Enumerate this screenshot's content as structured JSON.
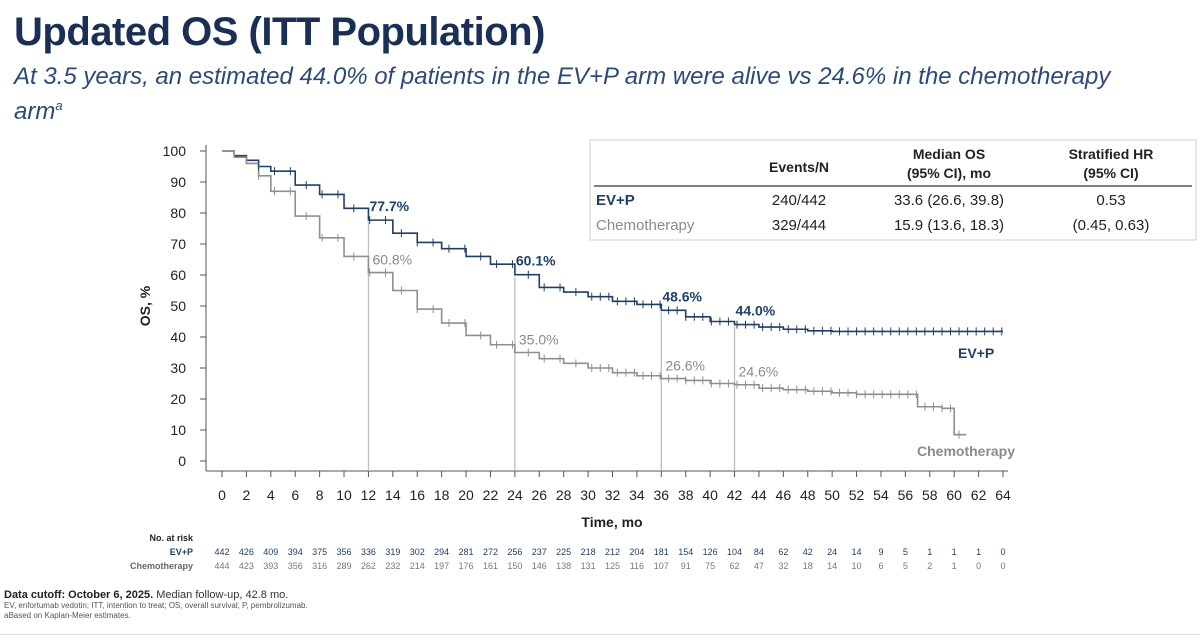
{
  "header": {
    "title": "Updated OS (ITT Population)",
    "subtitle": "At 3.5 years, an estimated 44.0% of patients in the EV+P arm were alive vs 24.6% in the chemotherapy arm",
    "subtitle_sup": "a"
  },
  "table": {
    "headers": [
      "",
      "Events/N",
      "Median OS\n(95% CI), mo",
      "Stratified HR\n(95% CI)"
    ],
    "rows": [
      {
        "arm": "EV+P",
        "events": "240/442",
        "median": "33.6 (26.6, 39.8)",
        "hr": "0.53"
      },
      {
        "arm": "Chemotherapy",
        "events": "329/444",
        "median": "15.9 (13.6, 18.3)",
        "hr": "(0.45, 0.63)"
      }
    ]
  },
  "risk_table": {
    "title": "No. at risk",
    "rows": [
      {
        "label": "EV+P",
        "values": [
          "442",
          "426",
          "409",
          "394",
          "375",
          "356",
          "336",
          "319",
          "302",
          "294",
          "281",
          "272",
          "256",
          "237",
          "225",
          "218",
          "212",
          "204",
          "181",
          "154",
          "126",
          "104",
          "84",
          "62",
          "42",
          "24",
          "14",
          "9",
          "5",
          "1",
          "1",
          "1",
          "0"
        ]
      },
      {
        "label": "Chemotherapy",
        "values": [
          "444",
          "423",
          "393",
          "356",
          "316",
          "289",
          "262",
          "232",
          "214",
          "197",
          "176",
          "161",
          "150",
          "146",
          "138",
          "131",
          "125",
          "116",
          "107",
          "91",
          "75",
          "62",
          "47",
          "32",
          "18",
          "14",
          "10",
          "6",
          "5",
          "2",
          "1",
          "0",
          "0"
        ]
      }
    ]
  },
  "footnotes": {
    "cutoff_bold": "Data cutoff: October 6, 2025.",
    "cutoff_rest": " Median follow-up, 42.8 mo.",
    "abbrev": "EV, enfortumab vedotin; ITT, intention to treat; OS, overall survival; P, pembrolizumab.",
    "note": "aBased on Kaplan-Meier estimates."
  },
  "colors": {
    "evp": "#1f3f66",
    "chemo": "#8f8f8f",
    "axis": "#555555"
  },
  "chart_data": {
    "type": "line",
    "xlabel": "Time, mo",
    "ylabel": "OS, %",
    "xlim": [
      0,
      64
    ],
    "ylim": [
      0,
      100
    ],
    "xticks": [
      0,
      2,
      4,
      6,
      8,
      10,
      12,
      14,
      16,
      18,
      20,
      22,
      24,
      26,
      28,
      30,
      32,
      34,
      36,
      38,
      40,
      42,
      44,
      46,
      48,
      50,
      52,
      54,
      56,
      58,
      60,
      62,
      64
    ],
    "yticks": [
      0,
      10,
      20,
      30,
      40,
      50,
      60,
      70,
      80,
      90,
      100
    ],
    "series": [
      {
        "name": "EV+P",
        "x": [
          0,
          1,
          2,
          3,
          4,
          6,
          8,
          10,
          12,
          14,
          16,
          18,
          20,
          22,
          24,
          26,
          28,
          30,
          32,
          34,
          36,
          38,
          40,
          42,
          44,
          46,
          48,
          50,
          52,
          54,
          56,
          58,
          60,
          62,
          64
        ],
        "y": [
          100,
          98.5,
          97,
          95,
          93.5,
          89,
          86,
          81.5,
          77.7,
          73.5,
          70.5,
          68.5,
          66,
          63.5,
          60.1,
          56,
          54.5,
          53,
          51.5,
          50.5,
          48.6,
          46.5,
          45,
          44,
          43.2,
          42.5,
          42,
          41.8,
          41.8,
          41.8,
          41.8,
          41.8,
          41.8,
          41.8,
          41.8
        ]
      },
      {
        "name": "Chemotherapy",
        "x": [
          0,
          1,
          2,
          3,
          4,
          6,
          8,
          10,
          12,
          14,
          16,
          18,
          20,
          22,
          24,
          26,
          28,
          30,
          32,
          34,
          36,
          38,
          40,
          42,
          44,
          46,
          48,
          50,
          52,
          54,
          56,
          57,
          58,
          59,
          60,
          61
        ],
        "y": [
          100,
          98,
          96,
          92,
          87,
          79,
          72,
          66,
          60.8,
          55,
          49,
          44.5,
          40.5,
          37.5,
          35.0,
          33,
          31.5,
          30,
          28.5,
          27.5,
          26.6,
          26,
          25,
          24.6,
          23.5,
          23,
          22.5,
          22,
          21.5,
          21.5,
          21.5,
          17.5,
          17.5,
          17,
          8.5,
          8.5
        ]
      }
    ],
    "landmarks": [
      {
        "x": 12,
        "evp": "77.7%",
        "chemo": "60.8%"
      },
      {
        "x": 24,
        "evp": "60.1%",
        "chemo": "35.0%"
      },
      {
        "x": 36,
        "evp": "48.6%",
        "chemo": "26.6%"
      },
      {
        "x": 42,
        "evp": "44.0%",
        "chemo": "24.6%"
      }
    ],
    "end_labels": {
      "evp": "EV+P",
      "chemo": "Chemotherapy"
    },
    "grid": false,
    "legend": "end-of-line labels"
  }
}
